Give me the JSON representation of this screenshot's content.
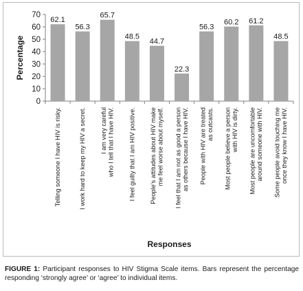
{
  "chart_data": {
    "type": "bar",
    "categories": [
      [
        "Telling someone I have HIV is risky."
      ],
      [
        "I work hard to keep my HIV a secret."
      ],
      [
        "I am very careful",
        "who I tell that I have HIV."
      ],
      [
        "I feel guilty that I am HIV positive."
      ],
      [
        "People’s attitudes about HIV make",
        "me feel worse about myself."
      ],
      [
        "I feel that I am not as good a person",
        "as others because I have HIV."
      ],
      [
        "People with HIV are treated",
        "as outcasts."
      ],
      [
        "Most people believe a person",
        "with HIV is dirty."
      ],
      [
        "Most people are uncomfortable",
        "around someone with HIV."
      ],
      [
        "Some people avoid touching me",
        "once they know I have HIV."
      ]
    ],
    "values": [
      62.1,
      56.3,
      65.7,
      48.5,
      44.7,
      22.3,
      56.3,
      60.2,
      61.2,
      48.5
    ],
    "value_labels": [
      "62.1",
      "56.3",
      "65.7",
      "48.5",
      "44.7",
      "22.3",
      "56.3",
      "60.2",
      "61.2",
      "48.5"
    ],
    "xlabel": "Responses",
    "ylabel": "Percentage",
    "ylim": [
      0,
      70
    ],
    "yticks": [
      0,
      10,
      20,
      30,
      40,
      50,
      60,
      70
    ],
    "grid": false,
    "bar_color": "#a6a6a6",
    "axis_color": "#7f7f7f"
  },
  "caption": {
    "label": "FIGURE 1:",
    "text": "Participant responses to HIV Stigma Scale items. Bars represent the percentage responding ‘strongly agree’ or ‘agree’ to individual items."
  }
}
